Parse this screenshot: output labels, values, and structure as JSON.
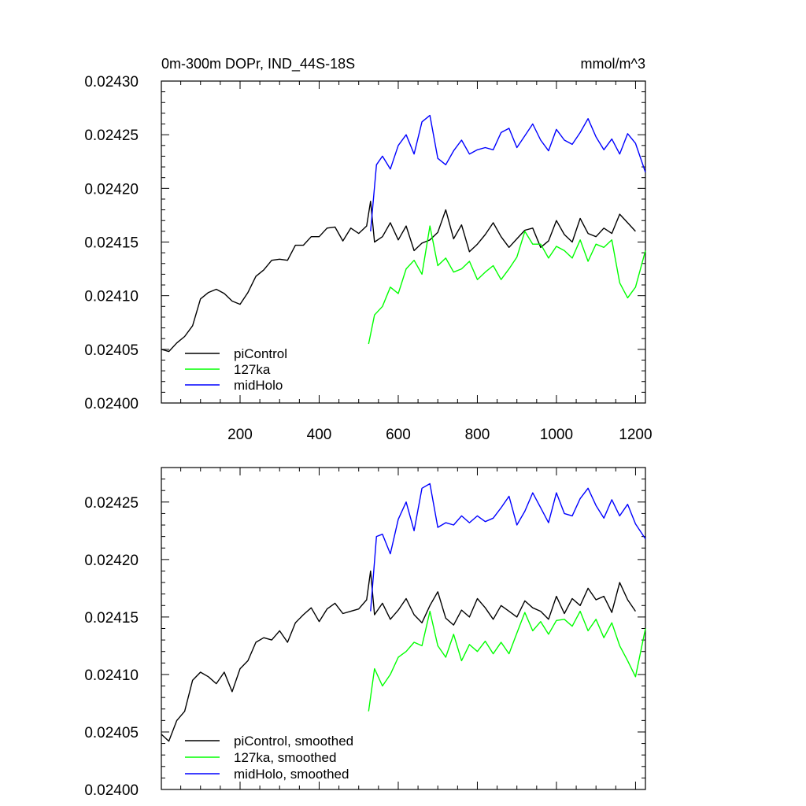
{
  "figure": {
    "title": "0m-300m DOPr, IND_44S-18S",
    "units": "mmol/m^3"
  },
  "chart_data": [
    {
      "type": "line",
      "panel": "top",
      "title": "0m-300m DOPr, IND_44S-18S",
      "units_label": "mmol/m^3",
      "xlabel": "",
      "ylabel": "",
      "xlim": [
        1,
        1225
      ],
      "ylim": [
        0.024,
        0.0243
      ],
      "xticks": [
        200,
        400,
        600,
        800,
        1000,
        1200
      ],
      "xtick_labels": [
        "200",
        "400",
        "600",
        "800",
        "1000",
        "1200"
      ],
      "yticks": [
        0.024,
        0.02405,
        0.0241,
        0.02415,
        0.0242,
        0.02425,
        0.0243
      ],
      "ytick_labels": [
        "0.02400",
        "0.02405",
        "0.02410",
        "0.02415",
        "0.02420",
        "0.02425",
        "0.02430"
      ],
      "legend_position": "bottom-left",
      "series": [
        {
          "name": "piControl",
          "color": "#000000",
          "x": [
            1,
            20,
            40,
            60,
            80,
            100,
            120,
            140,
            160,
            180,
            200,
            220,
            240,
            260,
            280,
            300,
            320,
            340,
            360,
            380,
            400,
            420,
            440,
            460,
            480,
            500,
            520,
            530,
            540,
            560,
            580,
            600,
            620,
            640,
            660,
            680,
            700,
            720,
            740,
            760,
            780,
            800,
            820,
            840,
            860,
            880,
            900,
            920,
            940,
            960,
            980,
            1000,
            1020,
            1040,
            1060,
            1080,
            1100,
            1120,
            1140,
            1160,
            1180,
            1200
          ],
          "y": [
            0.02405,
            0.024048,
            0.024056,
            0.024062,
            0.024072,
            0.024097,
            0.024103,
            0.024106,
            0.024102,
            0.024095,
            0.024092,
            0.024103,
            0.024118,
            0.024124,
            0.024133,
            0.024134,
            0.024133,
            0.024147,
            0.024147,
            0.024155,
            0.024155,
            0.024163,
            0.024164,
            0.024151,
            0.024163,
            0.024158,
            0.024165,
            0.024188,
            0.02415,
            0.024155,
            0.024168,
            0.024152,
            0.024165,
            0.024142,
            0.024149,
            0.024152,
            0.024159,
            0.02418,
            0.024153,
            0.024166,
            0.024141,
            0.024148,
            0.024157,
            0.024168,
            0.024155,
            0.024145,
            0.024153,
            0.024161,
            0.024163,
            0.024145,
            0.024151,
            0.02417,
            0.024157,
            0.02415,
            0.024172,
            0.024158,
            0.024155,
            0.024163,
            0.024158,
            0.024176,
            0.024168,
            0.02416
          ]
        },
        {
          "name": "127ka",
          "color": "#00ff00",
          "x": [
            525,
            540,
            560,
            580,
            600,
            620,
            640,
            660,
            680,
            700,
            720,
            740,
            760,
            780,
            800,
            820,
            840,
            860,
            880,
            900,
            920,
            940,
            960,
            980,
            1000,
            1020,
            1040,
            1060,
            1080,
            1100,
            1120,
            1140,
            1160,
            1180,
            1200,
            1225
          ],
          "y": [
            0.024055,
            0.024082,
            0.02409,
            0.024108,
            0.024102,
            0.024125,
            0.024133,
            0.02412,
            0.024165,
            0.024128,
            0.024135,
            0.024122,
            0.024125,
            0.024132,
            0.024115,
            0.024122,
            0.024128,
            0.024115,
            0.024125,
            0.024136,
            0.02416,
            0.024148,
            0.024148,
            0.024135,
            0.024146,
            0.024142,
            0.024135,
            0.024152,
            0.024132,
            0.024148,
            0.024145,
            0.024152,
            0.024112,
            0.024098,
            0.024108,
            0.024142
          ]
        },
        {
          "name": "midHolo",
          "color": "#0000ff",
          "x": [
            530,
            545,
            560,
            580,
            600,
            620,
            640,
            660,
            680,
            700,
            720,
            740,
            760,
            780,
            800,
            820,
            840,
            860,
            880,
            900,
            920,
            940,
            960,
            980,
            1000,
            1020,
            1040,
            1060,
            1080,
            1100,
            1120,
            1140,
            1160,
            1180,
            1200,
            1225
          ],
          "y": [
            0.02416,
            0.024222,
            0.02423,
            0.024218,
            0.02424,
            0.02425,
            0.024232,
            0.024262,
            0.024268,
            0.024228,
            0.024222,
            0.024235,
            0.024245,
            0.024232,
            0.024236,
            0.024238,
            0.024236,
            0.024252,
            0.024256,
            0.024238,
            0.024249,
            0.02426,
            0.024245,
            0.024235,
            0.024255,
            0.024245,
            0.024241,
            0.024252,
            0.024265,
            0.024248,
            0.024236,
            0.024246,
            0.024232,
            0.024251,
            0.024242,
            0.024215
          ]
        }
      ]
    },
    {
      "type": "line",
      "panel": "bottom",
      "title": "",
      "xlabel": "",
      "ylabel": "",
      "xlim": [
        1,
        1225
      ],
      "ylim": [
        0.024,
        0.02428
      ],
      "xticks": [
        200,
        400,
        600,
        800,
        1000,
        1200
      ],
      "xtick_labels": [],
      "yticks": [
        0.024,
        0.02405,
        0.0241,
        0.02415,
        0.0242,
        0.02425
      ],
      "ytick_labels": [
        "0.02400",
        "0.02405",
        "0.02410",
        "0.02415",
        "0.02420",
        "0.02425"
      ],
      "legend_position": "bottom-left",
      "series": [
        {
          "name": "piControl, smoothed",
          "color": "#000000",
          "x": [
            1,
            20,
            40,
            60,
            80,
            100,
            120,
            140,
            160,
            180,
            200,
            220,
            240,
            260,
            280,
            300,
            320,
            340,
            360,
            380,
            400,
            420,
            440,
            460,
            480,
            500,
            520,
            530,
            540,
            560,
            580,
            600,
            620,
            640,
            660,
            680,
            700,
            720,
            740,
            760,
            780,
            800,
            820,
            840,
            860,
            880,
            900,
            920,
            940,
            960,
            980,
            1000,
            1020,
            1040,
            1060,
            1080,
            1100,
            1120,
            1140,
            1160,
            1180,
            1200
          ],
          "y": [
            0.024048,
            0.024042,
            0.02406,
            0.024068,
            0.024095,
            0.024102,
            0.024098,
            0.024092,
            0.024102,
            0.024085,
            0.024105,
            0.024112,
            0.024128,
            0.024132,
            0.02413,
            0.024138,
            0.024128,
            0.024145,
            0.024152,
            0.024158,
            0.024146,
            0.024157,
            0.024162,
            0.024153,
            0.024155,
            0.024157,
            0.024165,
            0.02419,
            0.024152,
            0.024162,
            0.024148,
            0.024156,
            0.024166,
            0.024152,
            0.024145,
            0.02416,
            0.024172,
            0.024149,
            0.024143,
            0.024156,
            0.02415,
            0.024166,
            0.024158,
            0.024148,
            0.02416,
            0.024155,
            0.02415,
            0.024164,
            0.024158,
            0.024155,
            0.024148,
            0.024168,
            0.024153,
            0.024166,
            0.02416,
            0.024175,
            0.024165,
            0.024168,
            0.024154,
            0.02418,
            0.024165,
            0.024155
          ]
        },
        {
          "name": "127ka, smoothed",
          "color": "#00ff00",
          "x": [
            525,
            540,
            560,
            580,
            600,
            620,
            640,
            660,
            680,
            700,
            720,
            740,
            760,
            780,
            800,
            820,
            840,
            860,
            880,
            900,
            920,
            940,
            960,
            980,
            1000,
            1020,
            1040,
            1060,
            1080,
            1100,
            1120,
            1140,
            1160,
            1180,
            1200,
            1225
          ],
          "y": [
            0.024068,
            0.024105,
            0.02409,
            0.0241,
            0.024115,
            0.02412,
            0.024128,
            0.024125,
            0.024155,
            0.024125,
            0.024115,
            0.024135,
            0.024112,
            0.024126,
            0.02412,
            0.024129,
            0.024118,
            0.024128,
            0.024118,
            0.024136,
            0.024154,
            0.024138,
            0.024146,
            0.024135,
            0.024147,
            0.024148,
            0.024142,
            0.024155,
            0.024138,
            0.024148,
            0.024132,
            0.024145,
            0.024125,
            0.024112,
            0.024098,
            0.02414
          ]
        },
        {
          "name": "midHolo, smoothed",
          "color": "#0000ff",
          "x": [
            530,
            545,
            560,
            580,
            600,
            620,
            640,
            660,
            680,
            700,
            720,
            740,
            760,
            780,
            800,
            820,
            840,
            860,
            880,
            900,
            920,
            940,
            960,
            980,
            1000,
            1020,
            1040,
            1060,
            1080,
            1100,
            1120,
            1140,
            1160,
            1180,
            1200,
            1225
          ],
          "y": [
            0.024155,
            0.02422,
            0.024222,
            0.024205,
            0.024235,
            0.02425,
            0.024225,
            0.024262,
            0.024266,
            0.024228,
            0.024232,
            0.02423,
            0.024238,
            0.024232,
            0.024238,
            0.024233,
            0.024236,
            0.024245,
            0.024255,
            0.02423,
            0.024242,
            0.024258,
            0.024245,
            0.024232,
            0.024258,
            0.02424,
            0.024238,
            0.024253,
            0.024262,
            0.024247,
            0.024236,
            0.024252,
            0.024238,
            0.024248,
            0.024231,
            0.024218
          ]
        }
      ]
    }
  ]
}
